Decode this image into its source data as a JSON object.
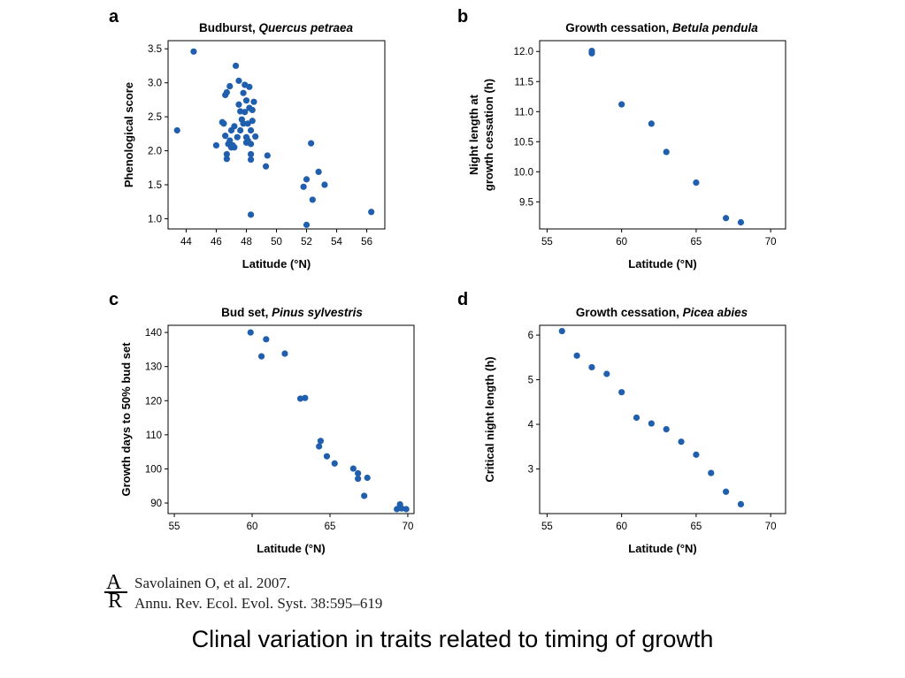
{
  "slide": {
    "caption": "Clinal variation in traits related to timing of growth",
    "citation": {
      "logo_text": "AR",
      "line1": "Savolainen O, et al. 2007.",
      "line2": "Annu. Rev. Ecol. Evol. Syst. 38:595–619"
    }
  },
  "colors": {
    "marker": "#1f5fae",
    "axis": "#000000"
  },
  "chart_data": [
    {
      "panel": "a",
      "type": "scatter",
      "title_prefix": "Budburst, ",
      "title_species": "Quercus petraea",
      "xlabel": "Latitude (°N)",
      "ylabel": [
        "Phenological score"
      ],
      "xlim": [
        42.8,
        57.2
      ],
      "ylim": [
        0.85,
        3.62
      ],
      "xticks": [
        44,
        46,
        48,
        50,
        52,
        54,
        56
      ],
      "xtick_labels": [
        "44",
        "46",
        "48",
        "50",
        "52",
        "54",
        "56"
      ],
      "yticks": [
        1.0,
        1.5,
        2.0,
        2.5,
        3.0,
        3.5
      ],
      "ytick_labels": [
        "1.0",
        "1.5",
        "2.0",
        "2.5",
        "3.0",
        "3.5"
      ],
      "points": [
        [
          43.4,
          2.3
        ],
        [
          44.5,
          3.46
        ],
        [
          46.0,
          2.08
        ],
        [
          46.4,
          2.42
        ],
        [
          46.5,
          2.4
        ],
        [
          46.6,
          2.82
        ],
        [
          46.7,
          2.86
        ],
        [
          46.6,
          2.22
        ],
        [
          46.7,
          1.95
        ],
        [
          46.7,
          1.88
        ],
        [
          46.8,
          2.1
        ],
        [
          46.9,
          2.15
        ],
        [
          46.9,
          2.95
        ],
        [
          47.0,
          2.3
        ],
        [
          47.0,
          2.05
        ],
        [
          47.1,
          2.08
        ],
        [
          47.2,
          2.05
        ],
        [
          47.2,
          2.36
        ],
        [
          47.3,
          3.25
        ],
        [
          47.4,
          2.2
        ],
        [
          47.5,
          3.03
        ],
        [
          47.5,
          2.68
        ],
        [
          47.6,
          2.58
        ],
        [
          47.6,
          2.3
        ],
        [
          47.7,
          2.46
        ],
        [
          47.8,
          2.4
        ],
        [
          47.8,
          2.85
        ],
        [
          47.9,
          2.97
        ],
        [
          47.9,
          2.57
        ],
        [
          48.0,
          2.74
        ],
        [
          48.0,
          2.2
        ],
        [
          48.0,
          2.12
        ],
        [
          48.1,
          2.15
        ],
        [
          48.1,
          2.4
        ],
        [
          48.2,
          2.94
        ],
        [
          48.2,
          2.63
        ],
        [
          48.3,
          2.3
        ],
        [
          48.3,
          2.1
        ],
        [
          48.3,
          1.95
        ],
        [
          48.3,
          1.87
        ],
        [
          48.4,
          2.6
        ],
        [
          48.4,
          2.44
        ],
        [
          48.5,
          2.72
        ],
        [
          48.6,
          2.21
        ],
        [
          48.3,
          1.06
        ],
        [
          49.3,
          1.77
        ],
        [
          49.4,
          1.93
        ],
        [
          51.8,
          1.47
        ],
        [
          52.0,
          1.58
        ],
        [
          52.0,
          0.91
        ],
        [
          52.3,
          2.11
        ],
        [
          52.4,
          1.28
        ],
        [
          52.8,
          1.69
        ],
        [
          53.2,
          1.5
        ],
        [
          56.3,
          1.1
        ]
      ]
    },
    {
      "panel": "b",
      "type": "scatter",
      "title_prefix": "Growth cessation, ",
      "title_species": "Betula pendula",
      "xlabel": "Latitude (°N)",
      "ylabel": [
        "Night length at",
        "growth cessation (h)"
      ],
      "xlim": [
        54.5,
        71.0
      ],
      "ylim": [
        9.05,
        12.18
      ],
      "xticks": [
        55,
        60,
        65,
        70
      ],
      "xtick_labels": [
        "55",
        "60",
        "65",
        "70"
      ],
      "yticks": [
        9.5,
        10.0,
        10.5,
        11.0,
        11.5,
        12.0
      ],
      "ytick_labels": [
        "9.5",
        "10.0",
        "10.5",
        "11.0",
        "11.5",
        "12.0"
      ],
      "points": [
        [
          58.0,
          12.01
        ],
        [
          58.0,
          11.97
        ],
        [
          60.0,
          11.12
        ],
        [
          62.0,
          10.8
        ],
        [
          63.0,
          10.33
        ],
        [
          65.0,
          9.82
        ],
        [
          67.0,
          9.23
        ],
        [
          68.0,
          9.16
        ]
      ]
    },
    {
      "panel": "c",
      "type": "scatter",
      "title_prefix": "Bud set, ",
      "title_species": "Pinus sylvestris",
      "xlabel": "Latitude (°N)",
      "ylabel": [
        "Growth days to 50% bud set"
      ],
      "xlim": [
        54.6,
        70.4
      ],
      "ylim": [
        86.9,
        142.1
      ],
      "xticks": [
        55,
        60,
        65,
        70
      ],
      "xtick_labels": [
        "55",
        "60",
        "65",
        "70"
      ],
      "yticks": [
        90,
        100,
        110,
        120,
        130,
        140
      ],
      "ytick_labels": [
        "90",
        "100",
        "110",
        "120",
        "130",
        "140"
      ],
      "points": [
        [
          59.9,
          140.0
        ],
        [
          60.6,
          133.0
        ],
        [
          60.9,
          138.0
        ],
        [
          62.1,
          133.8
        ],
        [
          63.1,
          120.6
        ],
        [
          63.4,
          120.8
        ],
        [
          64.3,
          106.6
        ],
        [
          64.4,
          108.2
        ],
        [
          64.8,
          103.7
        ],
        [
          65.3,
          101.6
        ],
        [
          66.5,
          100.1
        ],
        [
          66.8,
          98.7
        ],
        [
          66.8,
          97.1
        ],
        [
          67.4,
          97.4
        ],
        [
          67.2,
          92.1
        ],
        [
          69.3,
          88.2
        ],
        [
          69.5,
          89.6
        ],
        [
          69.6,
          88.4
        ],
        [
          69.9,
          88.2
        ]
      ]
    },
    {
      "panel": "d",
      "type": "scatter",
      "title_prefix": "Growth cessation, ",
      "title_species": "Picea abies",
      "xlabel": "Latitude (°N)",
      "ylabel": [
        "Critical night length (h)"
      ],
      "xlim": [
        54.5,
        71.0
      ],
      "ylim": [
        2.0,
        6.22
      ],
      "xticks": [
        55,
        60,
        65,
        70
      ],
      "xtick_labels": [
        "55",
        "60",
        "65",
        "70"
      ],
      "yticks": [
        3,
        4,
        5,
        6
      ],
      "ytick_labels": [
        "3",
        "4",
        "5",
        "6"
      ],
      "points": [
        [
          56.0,
          6.09
        ],
        [
          57.0,
          5.54
        ],
        [
          58.0,
          5.28
        ],
        [
          59.0,
          5.13
        ],
        [
          60.0,
          4.72
        ],
        [
          61.0,
          4.15
        ],
        [
          62.0,
          4.02
        ],
        [
          63.0,
          3.89
        ],
        [
          64.0,
          3.61
        ],
        [
          65.0,
          3.32
        ],
        [
          66.0,
          2.91
        ],
        [
          67.0,
          2.49
        ],
        [
          68.0,
          2.21
        ]
      ]
    }
  ]
}
